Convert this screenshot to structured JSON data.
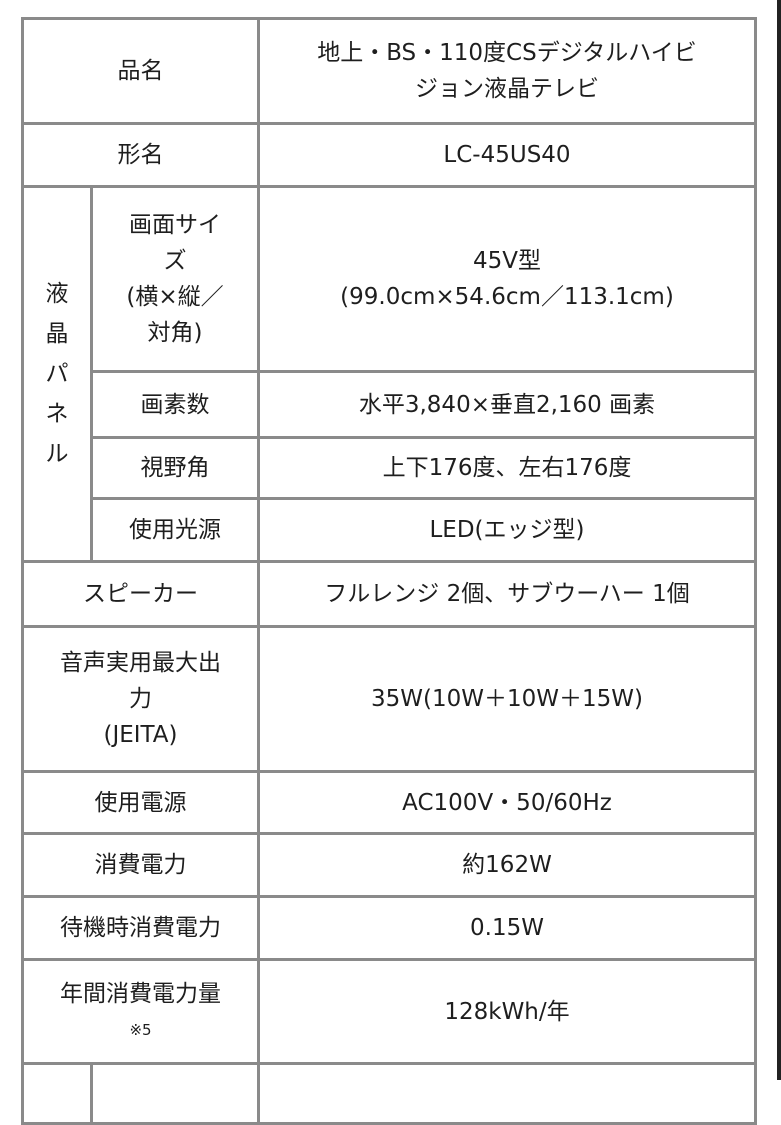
{
  "rows": {
    "product_name": {
      "label": "品名",
      "value_line1": "地上・BS・110度CSデジタルハイビ",
      "value_line2": "ジョン液晶テレビ"
    },
    "model": {
      "label": "形名",
      "value": "LC-45US40"
    },
    "lcd_panel": {
      "group_label": [
        "液",
        "晶",
        "パ",
        "ネ",
        "ル"
      ],
      "screen_size": {
        "label_lines": [
          "画面サイ",
          "ズ",
          "(横×縦／",
          "対角)"
        ],
        "value_line1": "45V型",
        "value_line2": "(99.0cm×54.6cm／113.1cm)"
      },
      "pixels": {
        "label": "画素数",
        "value": "水平3,840×垂直2,160 画素"
      },
      "viewing_angle": {
        "label": "視野角",
        "value": "上下176度、左右176度"
      },
      "light_source": {
        "label": "使用光源",
        "value": "LED(エッジ型)"
      }
    },
    "speaker": {
      "label": "スピーカー",
      "value": "フルレンジ 2個、サブウーハー 1個"
    },
    "audio_output": {
      "label_lines": [
        "音声実用最大出",
        "力",
        "(JEITA)"
      ],
      "value": "35W(10W＋10W＋15W)"
    },
    "power_supply": {
      "label": "使用電源",
      "value": "AC100V・50/60Hz"
    },
    "power_consumption": {
      "label": "消費電力",
      "value": "約162W"
    },
    "standby_power": {
      "label": "待機時消費電力",
      "value": "0.15W"
    },
    "annual_power": {
      "label": "年間消費電力量",
      "note": "※5",
      "value": "128kWh/年"
    }
  }
}
